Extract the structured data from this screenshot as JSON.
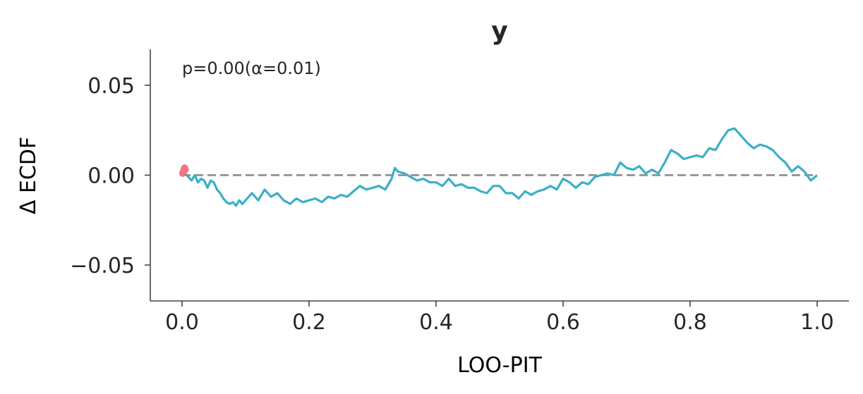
{
  "chart_data": {
    "type": "line",
    "title": "y",
    "xlabel": "LOO-PIT",
    "ylabel": "Δ ECDF",
    "annotation": "p=0.00(α=0.01)",
    "xlim": [
      -0.05,
      1.05
    ],
    "ylim": [
      -0.07,
      0.07
    ],
    "xticks": [
      0.0,
      0.2,
      0.4,
      0.6,
      0.8,
      1.0
    ],
    "xtick_labels": [
      "0.0",
      "0.2",
      "0.4",
      "0.6",
      "0.8",
      "1.0"
    ],
    "yticks": [
      0.05,
      0.0,
      -0.05
    ],
    "ytick_labels": [
      "0.05",
      "0.00",
      "−0.05"
    ],
    "grid": false,
    "reference_line": {
      "y": 0.0,
      "style": "dashed",
      "color": "#999999"
    },
    "series": [
      {
        "color": "#3BAFC8",
        "x": [
          0.0,
          0.005,
          0.01,
          0.015,
          0.02,
          0.025,
          0.03,
          0.035,
          0.04,
          0.045,
          0.05,
          0.055,
          0.06,
          0.065,
          0.07,
          0.075,
          0.08,
          0.085,
          0.09,
          0.095,
          0.1,
          0.11,
          0.12,
          0.13,
          0.14,
          0.15,
          0.16,
          0.17,
          0.18,
          0.19,
          0.2,
          0.21,
          0.22,
          0.23,
          0.24,
          0.25,
          0.26,
          0.27,
          0.28,
          0.29,
          0.3,
          0.31,
          0.32,
          0.33,
          0.335,
          0.34,
          0.35,
          0.36,
          0.37,
          0.38,
          0.39,
          0.4,
          0.41,
          0.42,
          0.43,
          0.44,
          0.45,
          0.46,
          0.47,
          0.48,
          0.49,
          0.5,
          0.51,
          0.52,
          0.53,
          0.54,
          0.55,
          0.56,
          0.57,
          0.58,
          0.59,
          0.6,
          0.61,
          0.62,
          0.63,
          0.64,
          0.65,
          0.66,
          0.67,
          0.68,
          0.69,
          0.7,
          0.71,
          0.72,
          0.73,
          0.74,
          0.75,
          0.76,
          0.77,
          0.78,
          0.79,
          0.8,
          0.81,
          0.82,
          0.83,
          0.84,
          0.85,
          0.86,
          0.87,
          0.88,
          0.89,
          0.9,
          0.91,
          0.92,
          0.93,
          0.94,
          0.95,
          0.96,
          0.97,
          0.98,
          0.99,
          1.0
        ],
        "y": [
          0.003,
          0.001,
          -0.001,
          -0.003,
          0.0,
          -0.004,
          -0.002,
          -0.003,
          -0.007,
          -0.003,
          -0.004,
          -0.008,
          -0.01,
          -0.013,
          -0.015,
          -0.016,
          -0.015,
          -0.017,
          -0.014,
          -0.016,
          -0.014,
          -0.01,
          -0.014,
          -0.008,
          -0.012,
          -0.01,
          -0.014,
          -0.016,
          -0.013,
          -0.015,
          -0.014,
          -0.013,
          -0.015,
          -0.012,
          -0.013,
          -0.011,
          -0.012,
          -0.009,
          -0.006,
          -0.008,
          -0.007,
          -0.006,
          -0.008,
          -0.002,
          0.004,
          0.002,
          0.001,
          -0.001,
          -0.003,
          -0.002,
          -0.004,
          -0.004,
          -0.006,
          -0.002,
          -0.006,
          -0.005,
          -0.007,
          -0.007,
          -0.009,
          -0.01,
          -0.006,
          -0.006,
          -0.01,
          -0.01,
          -0.013,
          -0.009,
          -0.011,
          -0.009,
          -0.008,
          -0.006,
          -0.008,
          -0.002,
          -0.004,
          -0.007,
          -0.004,
          -0.005,
          -0.001,
          0.0,
          0.001,
          0.0,
          0.007,
          0.004,
          0.003,
          0.005,
          0.001,
          0.003,
          0.001,
          0.007,
          0.014,
          0.012,
          0.009,
          0.01,
          0.011,
          0.01,
          0.015,
          0.014,
          0.02,
          0.025,
          0.026,
          0.022,
          0.018,
          0.015,
          0.017,
          0.016,
          0.014,
          0.01,
          0.007,
          0.002,
          0.005,
          0.002,
          -0.003,
          0.0
        ]
      }
    ],
    "highlight_points": {
      "color": "#F07586",
      "x": [
        0.001,
        0.002,
        0.003,
        0.004,
        0.005
      ],
      "y": [
        0.001,
        0.002,
        0.003,
        0.004,
        0.003
      ]
    }
  }
}
